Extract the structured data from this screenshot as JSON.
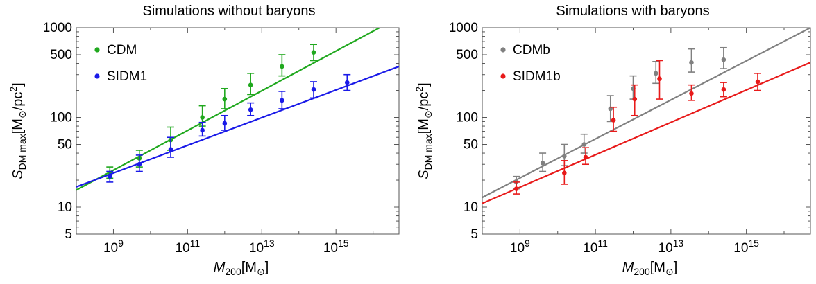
{
  "chart_data": [
    {
      "type": "scatter",
      "title": "Simulations without baryons",
      "xscale": "log",
      "yscale": "log",
      "xlim": [
        100000000.0,
        5e+16
      ],
      "ylim": [
        5,
        1000
      ],
      "x_ticks": [
        {
          "value": 1000000000.0,
          "base": "10",
          "exp": "9"
        },
        {
          "value": 100000000000.0,
          "base": "10",
          "exp": "11"
        },
        {
          "value": 10000000000000.0,
          "base": "10",
          "exp": "13"
        },
        {
          "value": 1000000000000000.0,
          "base": "10",
          "exp": "15"
        }
      ],
      "y_ticks": [
        {
          "value": 5,
          "label": "5"
        },
        {
          "value": 10,
          "label": "10"
        },
        {
          "value": 50,
          "label": "50"
        },
        {
          "value": 100,
          "label": "100"
        },
        {
          "value": 500,
          "label": "500"
        },
        {
          "value": 1000,
          "label": "1000"
        }
      ],
      "xlabel": {
        "main": "M",
        "sub": "200",
        "rest": "[M",
        "sub2": "⊙",
        "end": "]"
      },
      "ylabel": {
        "main": "S",
        "sub": "DM max",
        "rest": "[M",
        "sub2": "⊙",
        "end": "/pc",
        "sup": "2",
        "close": "]"
      },
      "legend_position": "top-left",
      "series": [
        {
          "name": "CDM",
          "color": "#20a81e",
          "points": [
            {
              "x": 800000000.0,
              "y": 24,
              "lo": 21,
              "hi": 28
            },
            {
              "x": 5000000000.0,
              "y": 35,
              "lo": 28,
              "hi": 43
            },
            {
              "x": 35000000000.0,
              "y": 56,
              "lo": 43,
              "hi": 78
            },
            {
              "x": 250000000000.0,
              "y": 100,
              "lo": 80,
              "hi": 135
            },
            {
              "x": 1000000000000.0,
              "y": 160,
              "lo": 125,
              "hi": 210
            },
            {
              "x": 5000000000000.0,
              "y": 230,
              "lo": 180,
              "hi": 310
            },
            {
              "x": 35000000000000.0,
              "y": 370,
              "lo": 290,
              "hi": 500
            },
            {
              "x": 250000000000000.0,
              "y": 530,
              "lo": 430,
              "hi": 650
            }
          ],
          "fit": {
            "x": [
              100000000.0,
              1.5e+16
            ],
            "y": [
              15.5,
              1000
            ]
          }
        },
        {
          "name": "SIDM1",
          "color": "#1a1ae8",
          "points": [
            {
              "x": 800000000.0,
              "y": 22,
              "lo": 19,
              "hi": 25
            },
            {
              "x": 5000000000.0,
              "y": 30,
              "lo": 25,
              "hi": 38
            },
            {
              "x": 35000000000.0,
              "y": 44,
              "lo": 36,
              "hi": 60
            },
            {
              "x": 250000000000.0,
              "y": 72,
              "lo": 62,
              "hi": 88
            },
            {
              "x": 1000000000000.0,
              "y": 86,
              "lo": 72,
              "hi": 105
            },
            {
              "x": 5000000000000.0,
              "y": 122,
              "lo": 105,
              "hi": 145
            },
            {
              "x": 35000000000000.0,
              "y": 155,
              "lo": 125,
              "hi": 195
            },
            {
              "x": 250000000000000.0,
              "y": 205,
              "lo": 165,
              "hi": 250
            },
            {
              "x": 2000000000000000.0,
              "y": 245,
              "lo": 200,
              "hi": 300
            }
          ],
          "fit": {
            "x": [
              100000000.0,
              5e+16
            ],
            "y": [
              16.8,
              370
            ]
          }
        }
      ]
    },
    {
      "type": "scatter",
      "title": "Simulations with baryons",
      "xscale": "log",
      "yscale": "log",
      "xlim": [
        100000000.0,
        5e+16
      ],
      "ylim": [
        5,
        1000
      ],
      "x_ticks": [
        {
          "value": 1000000000.0,
          "base": "10",
          "exp": "9"
        },
        {
          "value": 100000000000.0,
          "base": "10",
          "exp": "11"
        },
        {
          "value": 10000000000000.0,
          "base": "10",
          "exp": "13"
        },
        {
          "value": 1000000000000000.0,
          "base": "10",
          "exp": "15"
        }
      ],
      "y_ticks": [
        {
          "value": 5,
          "label": "5"
        },
        {
          "value": 10,
          "label": "10"
        },
        {
          "value": 50,
          "label": "50"
        },
        {
          "value": 100,
          "label": "100"
        },
        {
          "value": 500,
          "label": "500"
        },
        {
          "value": 1000,
          "label": "1000"
        }
      ],
      "xlabel": {
        "main": "M",
        "sub": "200",
        "rest": "[M",
        "sub2": "⊙",
        "end": "]"
      },
      "ylabel": {
        "main": "S",
        "sub": "DM max",
        "rest": "[M",
        "sub2": "⊙",
        "end": "/pc",
        "sup": "2",
        "close": "]"
      },
      "legend_position": "top-left",
      "series": [
        {
          "name": "CDMb",
          "color": "#808080",
          "points": [
            {
              "x": 800000000.0,
              "y": 19,
              "lo": 16,
              "hi": 22
            },
            {
              "x": 4000000000.0,
              "y": 31,
              "lo": 25,
              "hi": 40
            },
            {
              "x": 15000000000.0,
              "y": 37,
              "lo": 29,
              "hi": 50
            },
            {
              "x": 50000000000.0,
              "y": 50,
              "lo": 40,
              "hi": 65
            },
            {
              "x": 250000000000.0,
              "y": 125,
              "lo": 90,
              "hi": 175
            },
            {
              "x": 1000000000000.0,
              "y": 210,
              "lo": 160,
              "hi": 290
            },
            {
              "x": 4000000000000.0,
              "y": 310,
              "lo": 240,
              "hi": 420
            },
            {
              "x": 35000000000000.0,
              "y": 410,
              "lo": 320,
              "hi": 580
            },
            {
              "x": 250000000000000.0,
              "y": 440,
              "lo": 350,
              "hi": 600
            }
          ],
          "fit": {
            "x": [
              100000000.0,
              5e+16
            ],
            "y": [
              12.8,
              1000
            ]
          }
        },
        {
          "name": "SIDM1b",
          "color": "#e81a1a",
          "points": [
            {
              "x": 800000000.0,
              "y": 16,
              "lo": 14,
              "hi": 19
            },
            {
              "x": 15000000000.0,
              "y": 24,
              "lo": 18,
              "hi": 33
            },
            {
              "x": 55000000000.0,
              "y": 36,
              "lo": 30,
              "hi": 46
            },
            {
              "x": 300000000000.0,
              "y": 93,
              "lo": 70,
              "hi": 130
            },
            {
              "x": 1100000000000.0,
              "y": 160,
              "lo": 105,
              "hi": 230
            },
            {
              "x": 5000000000000.0,
              "y": 270,
              "lo": 160,
              "hi": 430
            },
            {
              "x": 35000000000000.0,
              "y": 185,
              "lo": 155,
              "hi": 230
            },
            {
              "x": 250000000000000.0,
              "y": 205,
              "lo": 170,
              "hi": 245
            },
            {
              "x": 2000000000000000.0,
              "y": 250,
              "lo": 200,
              "hi": 310
            }
          ],
          "fit": {
            "x": [
              100000000.0,
              5e+16
            ],
            "y": [
              11,
              410
            ]
          }
        }
      ]
    }
  ]
}
